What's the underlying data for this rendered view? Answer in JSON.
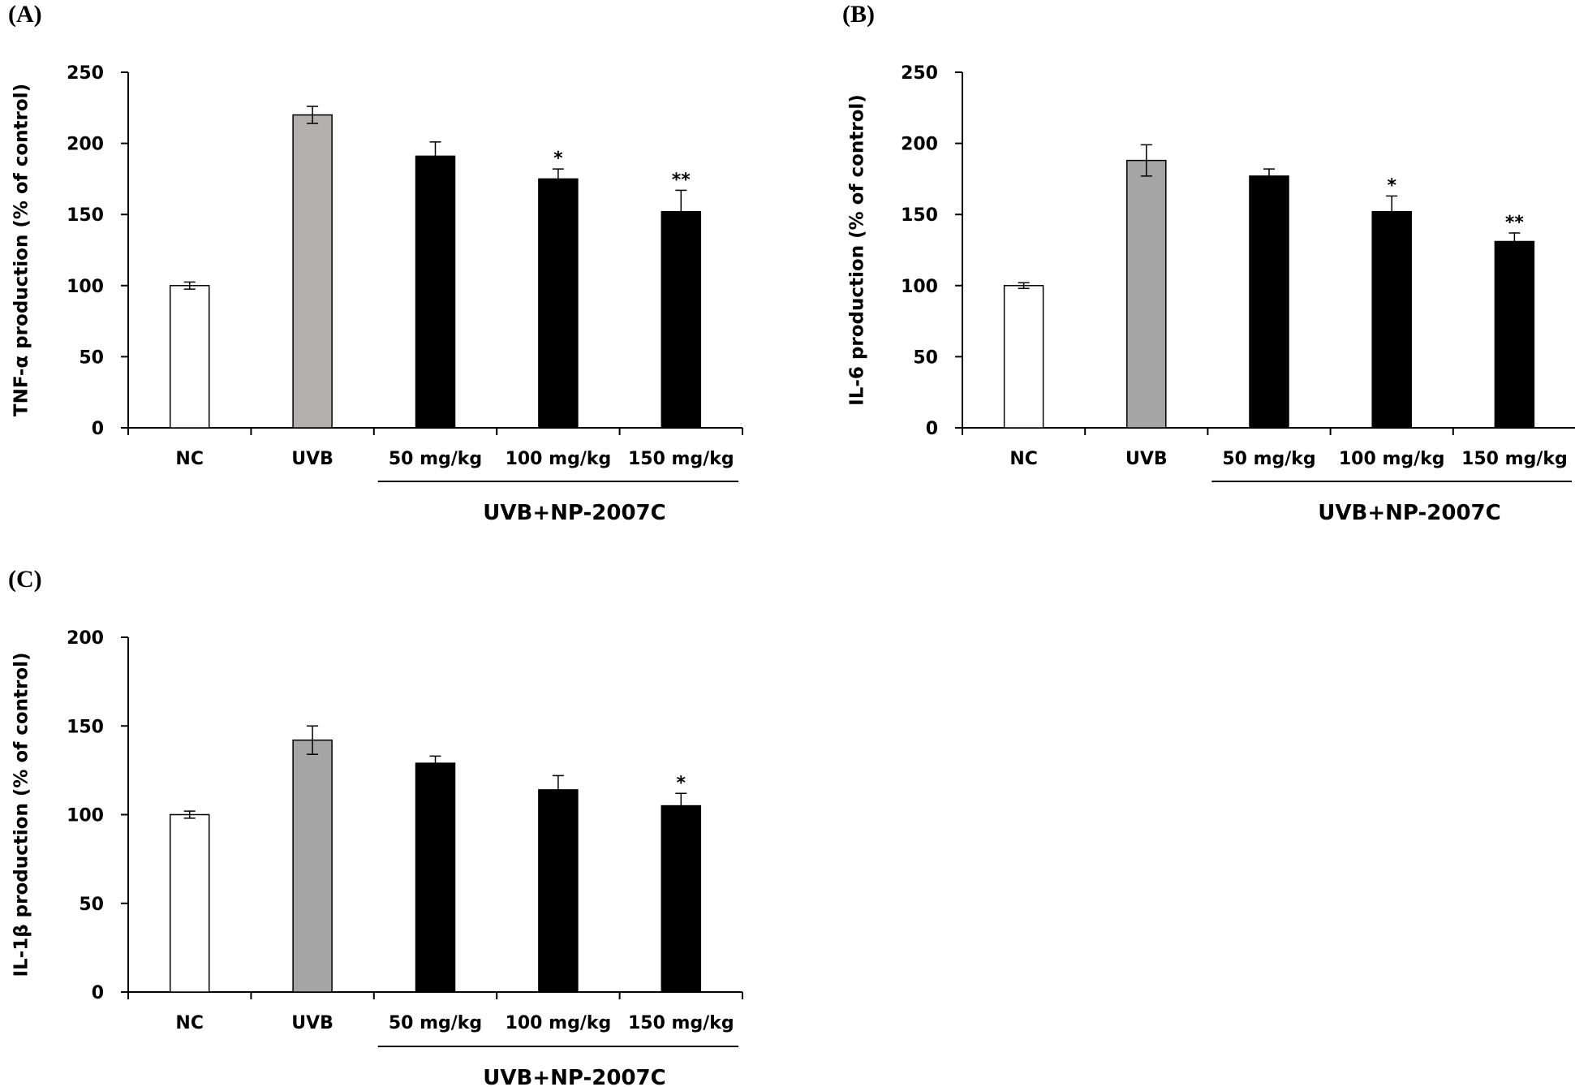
{
  "chart_data": [
    {
      "panel": "(A)",
      "type": "bar",
      "ylabel": "TNF-α production (% of control)",
      "ylim": [
        0,
        250
      ],
      "yticks": [
        0,
        50,
        100,
        150,
        200,
        250
      ],
      "categories": [
        "NC",
        "UVB",
        "50 mg/kg",
        "100 mg/kg",
        "150 mg/kg"
      ],
      "values": [
        100,
        220,
        191,
        175,
        152
      ],
      "errors": [
        2.5,
        6,
        10,
        7,
        15
      ],
      "bar_colors": [
        "#ffffff",
        "#b3afae",
        "#000000",
        "#000000",
        "#000000"
      ],
      "significance": [
        "",
        "",
        "",
        "*",
        "**"
      ],
      "group": {
        "label": "UVB+NP-2007C",
        "from": 2,
        "to": 4
      },
      "grid": false,
      "legend": false
    },
    {
      "panel": "(B)",
      "type": "bar",
      "ylabel": "IL-6 production (% of control)",
      "ylim": [
        0,
        250
      ],
      "yticks": [
        0,
        50,
        100,
        150,
        200,
        250
      ],
      "categories": [
        "NC",
        "UVB",
        "50 mg/kg",
        "100 mg/kg",
        "150 mg/kg"
      ],
      "values": [
        100,
        188,
        177,
        152,
        131
      ],
      "errors": [
        2,
        11,
        5,
        11,
        6
      ],
      "bar_colors": [
        "#ffffff",
        "#a5a5a5",
        "#000000",
        "#000000",
        "#000000"
      ],
      "significance": [
        "",
        "",
        "",
        "*",
        "**"
      ],
      "group": {
        "label": "UVB+NP-2007C",
        "from": 2,
        "to": 4
      },
      "grid": false,
      "legend": false
    },
    {
      "panel": "(C)",
      "type": "bar",
      "ylabel": "IL-1β production (% of control)",
      "ylim": [
        0,
        200
      ],
      "yticks": [
        0,
        50,
        100,
        150,
        200
      ],
      "categories": [
        "NC",
        "UVB",
        "50 mg/kg",
        "100 mg/kg",
        "150 mg/kg"
      ],
      "values": [
        100,
        142,
        129,
        114,
        105
      ],
      "errors": [
        2,
        8,
        4,
        8,
        7
      ],
      "bar_colors": [
        "#ffffff",
        "#a5a5a5",
        "#000000",
        "#000000",
        "#000000"
      ],
      "significance": [
        "",
        "",
        "",
        "",
        "*"
      ],
      "group": {
        "label": "UVB+NP-2007C",
        "from": 2,
        "to": 4
      },
      "grid": false,
      "legend": false
    }
  ]
}
